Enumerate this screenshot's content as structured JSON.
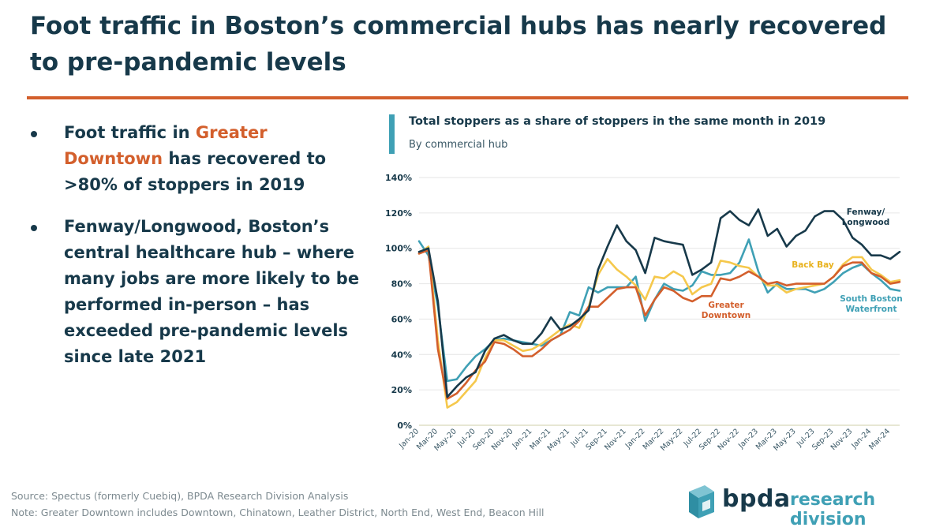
{
  "page": {
    "title": "Foot traffic in Boston’s commercial hubs has nearly recovered to pre-pandemic levels",
    "bullet1_a": "Foot traffic in ",
    "bullet1_hl": "Greater Downtown",
    "bullet1_b": " has recovered to >80% of stoppers in 2019",
    "bullet2": "Fenway/Longwood, Boston’s central healthcare hub – where many jobs are more likely to be performed in-person – has exceeded pre-pandemic levels since late 2021",
    "source": "Source: Spectus (formerly Cuebiq), BPDA Research Division Analysis",
    "note": "Note: Greater Downtown includes Downtown, Chinatown, Leather District, North End, West End, Beacon Hill",
    "logo_word": "bpda",
    "logo_division": "research division"
  },
  "colors": {
    "accent": "#d35f2c",
    "navy": "#17394a",
    "teal": "#3fa0b5",
    "yellow": "#f5c84c"
  },
  "chart_data": {
    "type": "line",
    "title": "Total stoppers as a share of stoppers in the same month in 2019",
    "subtitle": "By commercial hub",
    "ylim": [
      0,
      140
    ],
    "yticks": [
      0,
      20,
      40,
      60,
      80,
      100,
      120,
      140
    ],
    "ytick_labels": [
      "0%",
      "20%",
      "40%",
      "60%",
      "80%",
      "100%",
      "120%",
      "140%"
    ],
    "grid": true,
    "x": [
      "Jan-20",
      "Feb-20",
      "Mar-20",
      "Apr-20",
      "May-20",
      "Jun-20",
      "Jul-20",
      "Aug-20",
      "Sep-20",
      "Oct-20",
      "Nov-20",
      "Dec-20",
      "Jan-21",
      "Feb-21",
      "Mar-21",
      "Apr-21",
      "May-21",
      "Jun-21",
      "Jul-21",
      "Aug-21",
      "Sep-21",
      "Oct-21",
      "Nov-21",
      "Dec-21",
      "Jan-22",
      "Feb-22",
      "Mar-22",
      "Apr-22",
      "May-22",
      "Jun-22",
      "Jul-22",
      "Aug-22",
      "Sep-22",
      "Oct-22",
      "Nov-22",
      "Dec-22",
      "Jan-23",
      "Feb-23",
      "Mar-23",
      "Apr-23",
      "May-23",
      "Jun-23",
      "Jul-23",
      "Aug-23",
      "Sep-23",
      "Oct-23",
      "Nov-23",
      "Dec-23",
      "Jan-24",
      "Feb-24",
      "Mar-24",
      "Apr-24"
    ],
    "x_tick_labels": [
      "Jan-20",
      "Mar-20",
      "May-20",
      "Jul-20",
      "Sep-20",
      "Nov-20",
      "Jan-21",
      "Mar-21",
      "May-21",
      "Jul-21",
      "Sep-21",
      "Nov-21",
      "Jan-22",
      "Mar-22",
      "May-22",
      "Jul-22",
      "Sep-22",
      "Nov-22",
      "Jan-23",
      "Mar-23",
      "May-23",
      "Jul-23",
      "Sep-23",
      "Nov-23",
      "Jan-24",
      "Mar-24"
    ],
    "series": [
      {
        "name": "Fenway/ Longwood",
        "color": "#17394a",
        "label_lines": [
          "Fenway/",
          "Longwood"
        ],
        "values": [
          98,
          100,
          70,
          16,
          22,
          27,
          30,
          42,
          49,
          51,
          48,
          46,
          46,
          52,
          61,
          54,
          56,
          60,
          65,
          88,
          101,
          113,
          104,
          99,
          86,
          106,
          104,
          103,
          102,
          85,
          88,
          92,
          117,
          121,
          116,
          113,
          122,
          107,
          111,
          101,
          107,
          110,
          118,
          121,
          121,
          116,
          106,
          102,
          96,
          96,
          94,
          98
        ]
      },
      {
        "name": "Back Bay",
        "color": "#f5c84c",
        "label_lines": [
          "Back Bay"
        ],
        "values": [
          97,
          101,
          48,
          10,
          13,
          19,
          25,
          38,
          48,
          48,
          45,
          42,
          43,
          46,
          50,
          54,
          57,
          55,
          67,
          85,
          94,
          88,
          84,
          79,
          71,
          84,
          83,
          87,
          84,
          74,
          78,
          80,
          93,
          92,
          90,
          89,
          84,
          79,
          79,
          75,
          77,
          78,
          79,
          80,
          84,
          91,
          95,
          95,
          88,
          85,
          81,
          82
        ]
      },
      {
        "name": "South Boston Waterfront",
        "color": "#3fa0b5",
        "label_lines": [
          "South Boston",
          "Waterfront"
        ],
        "values": [
          104,
          96,
          67,
          25,
          26,
          33,
          39,
          43,
          48,
          49,
          48,
          47,
          46,
          45,
          48,
          51,
          64,
          62,
          78,
          75,
          78,
          78,
          78,
          84,
          59,
          71,
          80,
          77,
          76,
          79,
          87,
          85,
          85,
          86,
          92,
          105,
          87,
          75,
          80,
          77,
          77,
          77,
          75,
          77,
          81,
          86,
          89,
          91,
          86,
          82,
          77,
          76
        ]
      },
      {
        "name": "Greater Downtown",
        "color": "#d35f2c",
        "label_lines": [
          "Greater",
          "Downtown"
        ],
        "values": [
          97,
          99,
          43,
          15,
          18,
          24,
          31,
          36,
          47,
          46,
          43,
          39,
          39,
          43,
          48,
          51,
          54,
          59,
          67,
          67,
          72,
          77,
          78,
          78,
          62,
          71,
          78,
          76,
          72,
          70,
          73,
          73,
          83,
          82,
          84,
          87,
          84,
          80,
          81,
          79,
          80,
          80,
          80,
          80,
          84,
          90,
          92,
          92,
          86,
          84,
          80,
          81
        ]
      }
    ]
  }
}
